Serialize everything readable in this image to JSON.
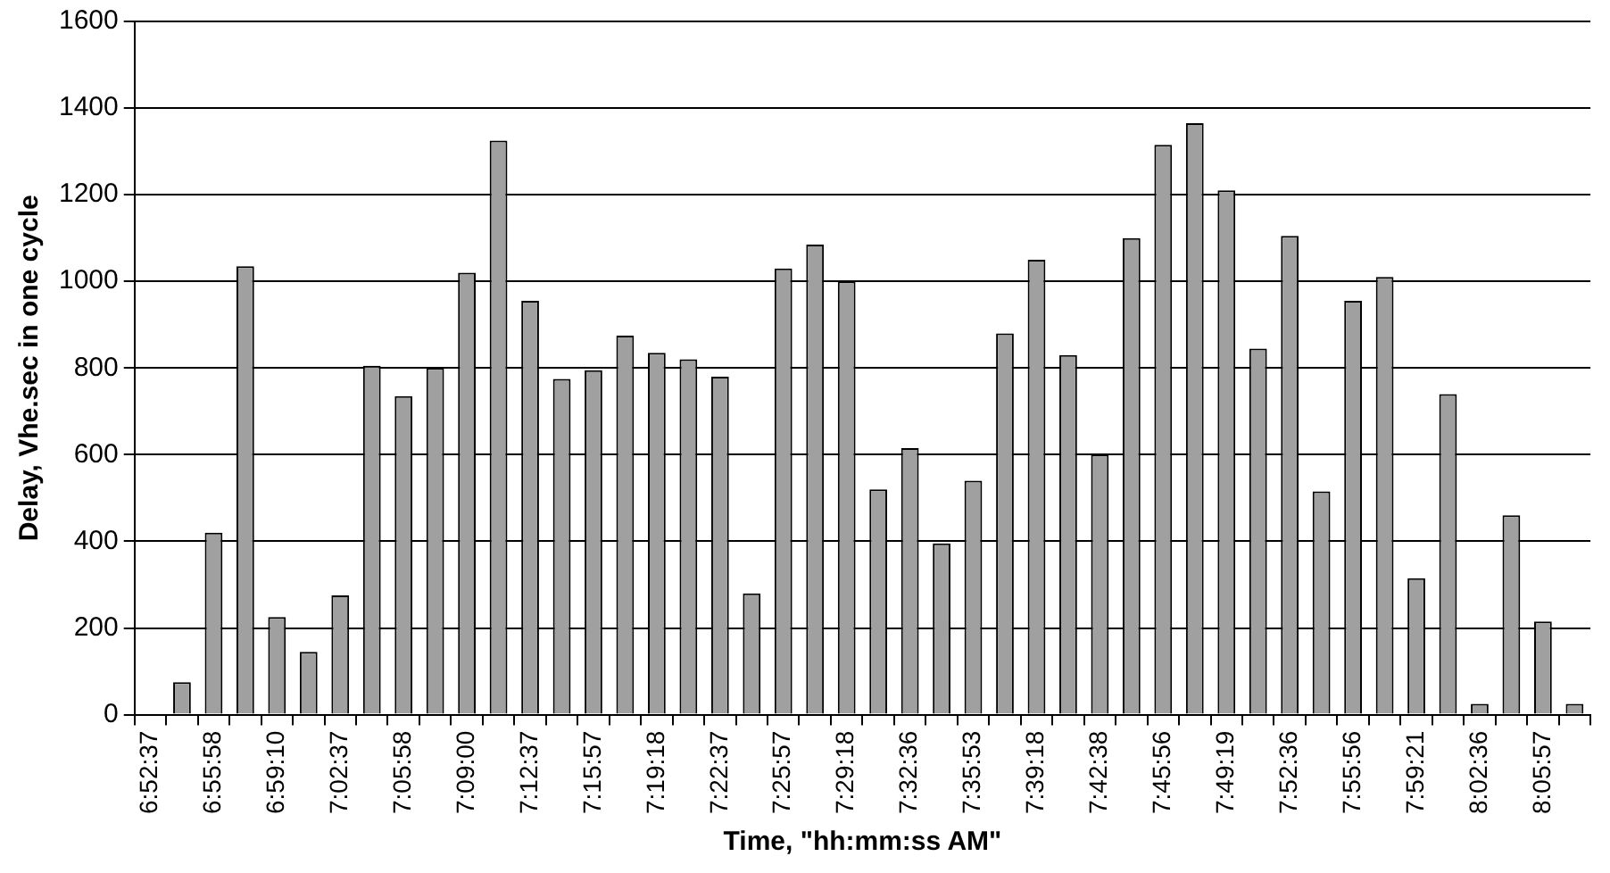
{
  "chart_data": {
    "type": "bar",
    "xlabel": "Time, \"hh:mm:ss AM\"",
    "ylabel": "Delay, Vhe.sec in one cycle",
    "categories": [
      "6:52:37",
      null,
      "6:55:58",
      null,
      "6:59:10",
      null,
      "7:02:37",
      null,
      "7:05:58",
      null,
      "7:09:00",
      null,
      "7:12:37",
      null,
      "7:15:57",
      null,
      "7:19:18",
      null,
      "7:22:37",
      null,
      "7:25:57",
      null,
      "7:29:18",
      null,
      "7:32:36",
      null,
      "7:35:53",
      null,
      "7:39:18",
      null,
      "7:42:38",
      null,
      "7:45:56",
      null,
      "7:49:19",
      null,
      "7:52:36",
      null,
      "7:55:56",
      null,
      "7:59:21",
      null,
      "8:02:36",
      null,
      "8:05:57",
      null
    ],
    "values": [
      null,
      75,
      420,
      1035,
      225,
      145,
      275,
      805,
      735,
      800,
      1020,
      1325,
      955,
      775,
      795,
      875,
      835,
      820,
      780,
      280,
      1030,
      1085,
      1000,
      520,
      615,
      395,
      540,
      880,
      1050,
      830,
      600,
      1100,
      1315,
      1365,
      1210,
      845,
      1105,
      515,
      955,
      1010,
      315,
      740,
      25,
      460,
      215,
      25
    ],
    "color": "#a0a0a0",
    "ylim": [
      0,
      1600
    ],
    "yticks": [
      0,
      200,
      400,
      600,
      800,
      1000,
      1200,
      1400,
      1600
    ],
    "grid": "y",
    "legend": false
  }
}
